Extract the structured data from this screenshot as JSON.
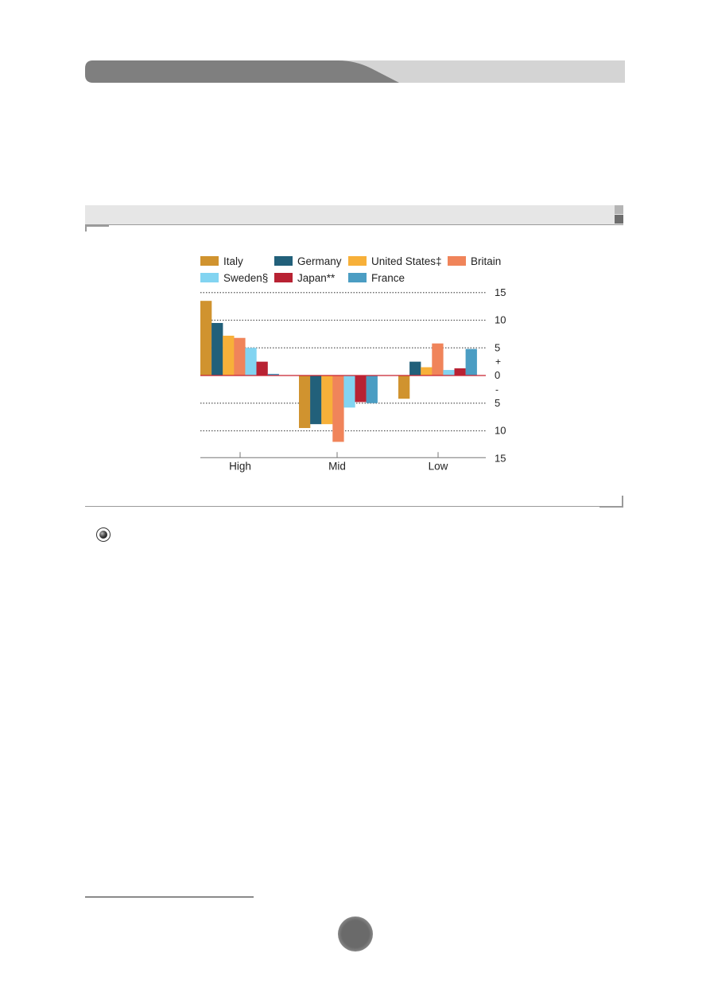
{
  "chart_data": {
    "type": "bar",
    "categories": [
      "High",
      "Mid",
      "Low"
    ],
    "series": [
      {
        "name": "Italy",
        "color": "#d0932f",
        "values": [
          13.5,
          -9.5,
          -4.2
        ]
      },
      {
        "name": "Germany",
        "color": "#22607a",
        "values": [
          9.5,
          -8.8,
          2.5
        ]
      },
      {
        "name": "United States‡",
        "color": "#f7b039",
        "values": [
          7.2,
          -8.8,
          1.5
        ]
      },
      {
        "name": "Britain",
        "color": "#f0845a",
        "values": [
          6.8,
          -12.0,
          5.8
        ]
      },
      {
        "name": "Sweden§",
        "color": "#82d4f1",
        "values": [
          5.0,
          -5.8,
          1.0
        ]
      },
      {
        "name": "Japan**",
        "color": "#b82233",
        "values": [
          2.5,
          -4.8,
          1.3
        ]
      },
      {
        "name": "France",
        "color": "#4b9dc3",
        "values": [
          0.3,
          -5.0,
          4.8
        ]
      }
    ],
    "ylim": [
      -15,
      15
    ],
    "yticks": [
      {
        "value": 15,
        "label": "15"
      },
      {
        "value": 10,
        "label": "10"
      },
      {
        "value": 5,
        "label": "5"
      },
      {
        "value": 0,
        "label": "0"
      },
      {
        "value": -5,
        "label": "5"
      },
      {
        "value": -10,
        "label": "10"
      },
      {
        "value": -15,
        "label": "15"
      }
    ],
    "sign_labels": {
      "plus": "+",
      "minus": "-"
    },
    "grid": true,
    "legend_position": "top",
    "title": "",
    "xlabel": "",
    "ylabel": ""
  }
}
